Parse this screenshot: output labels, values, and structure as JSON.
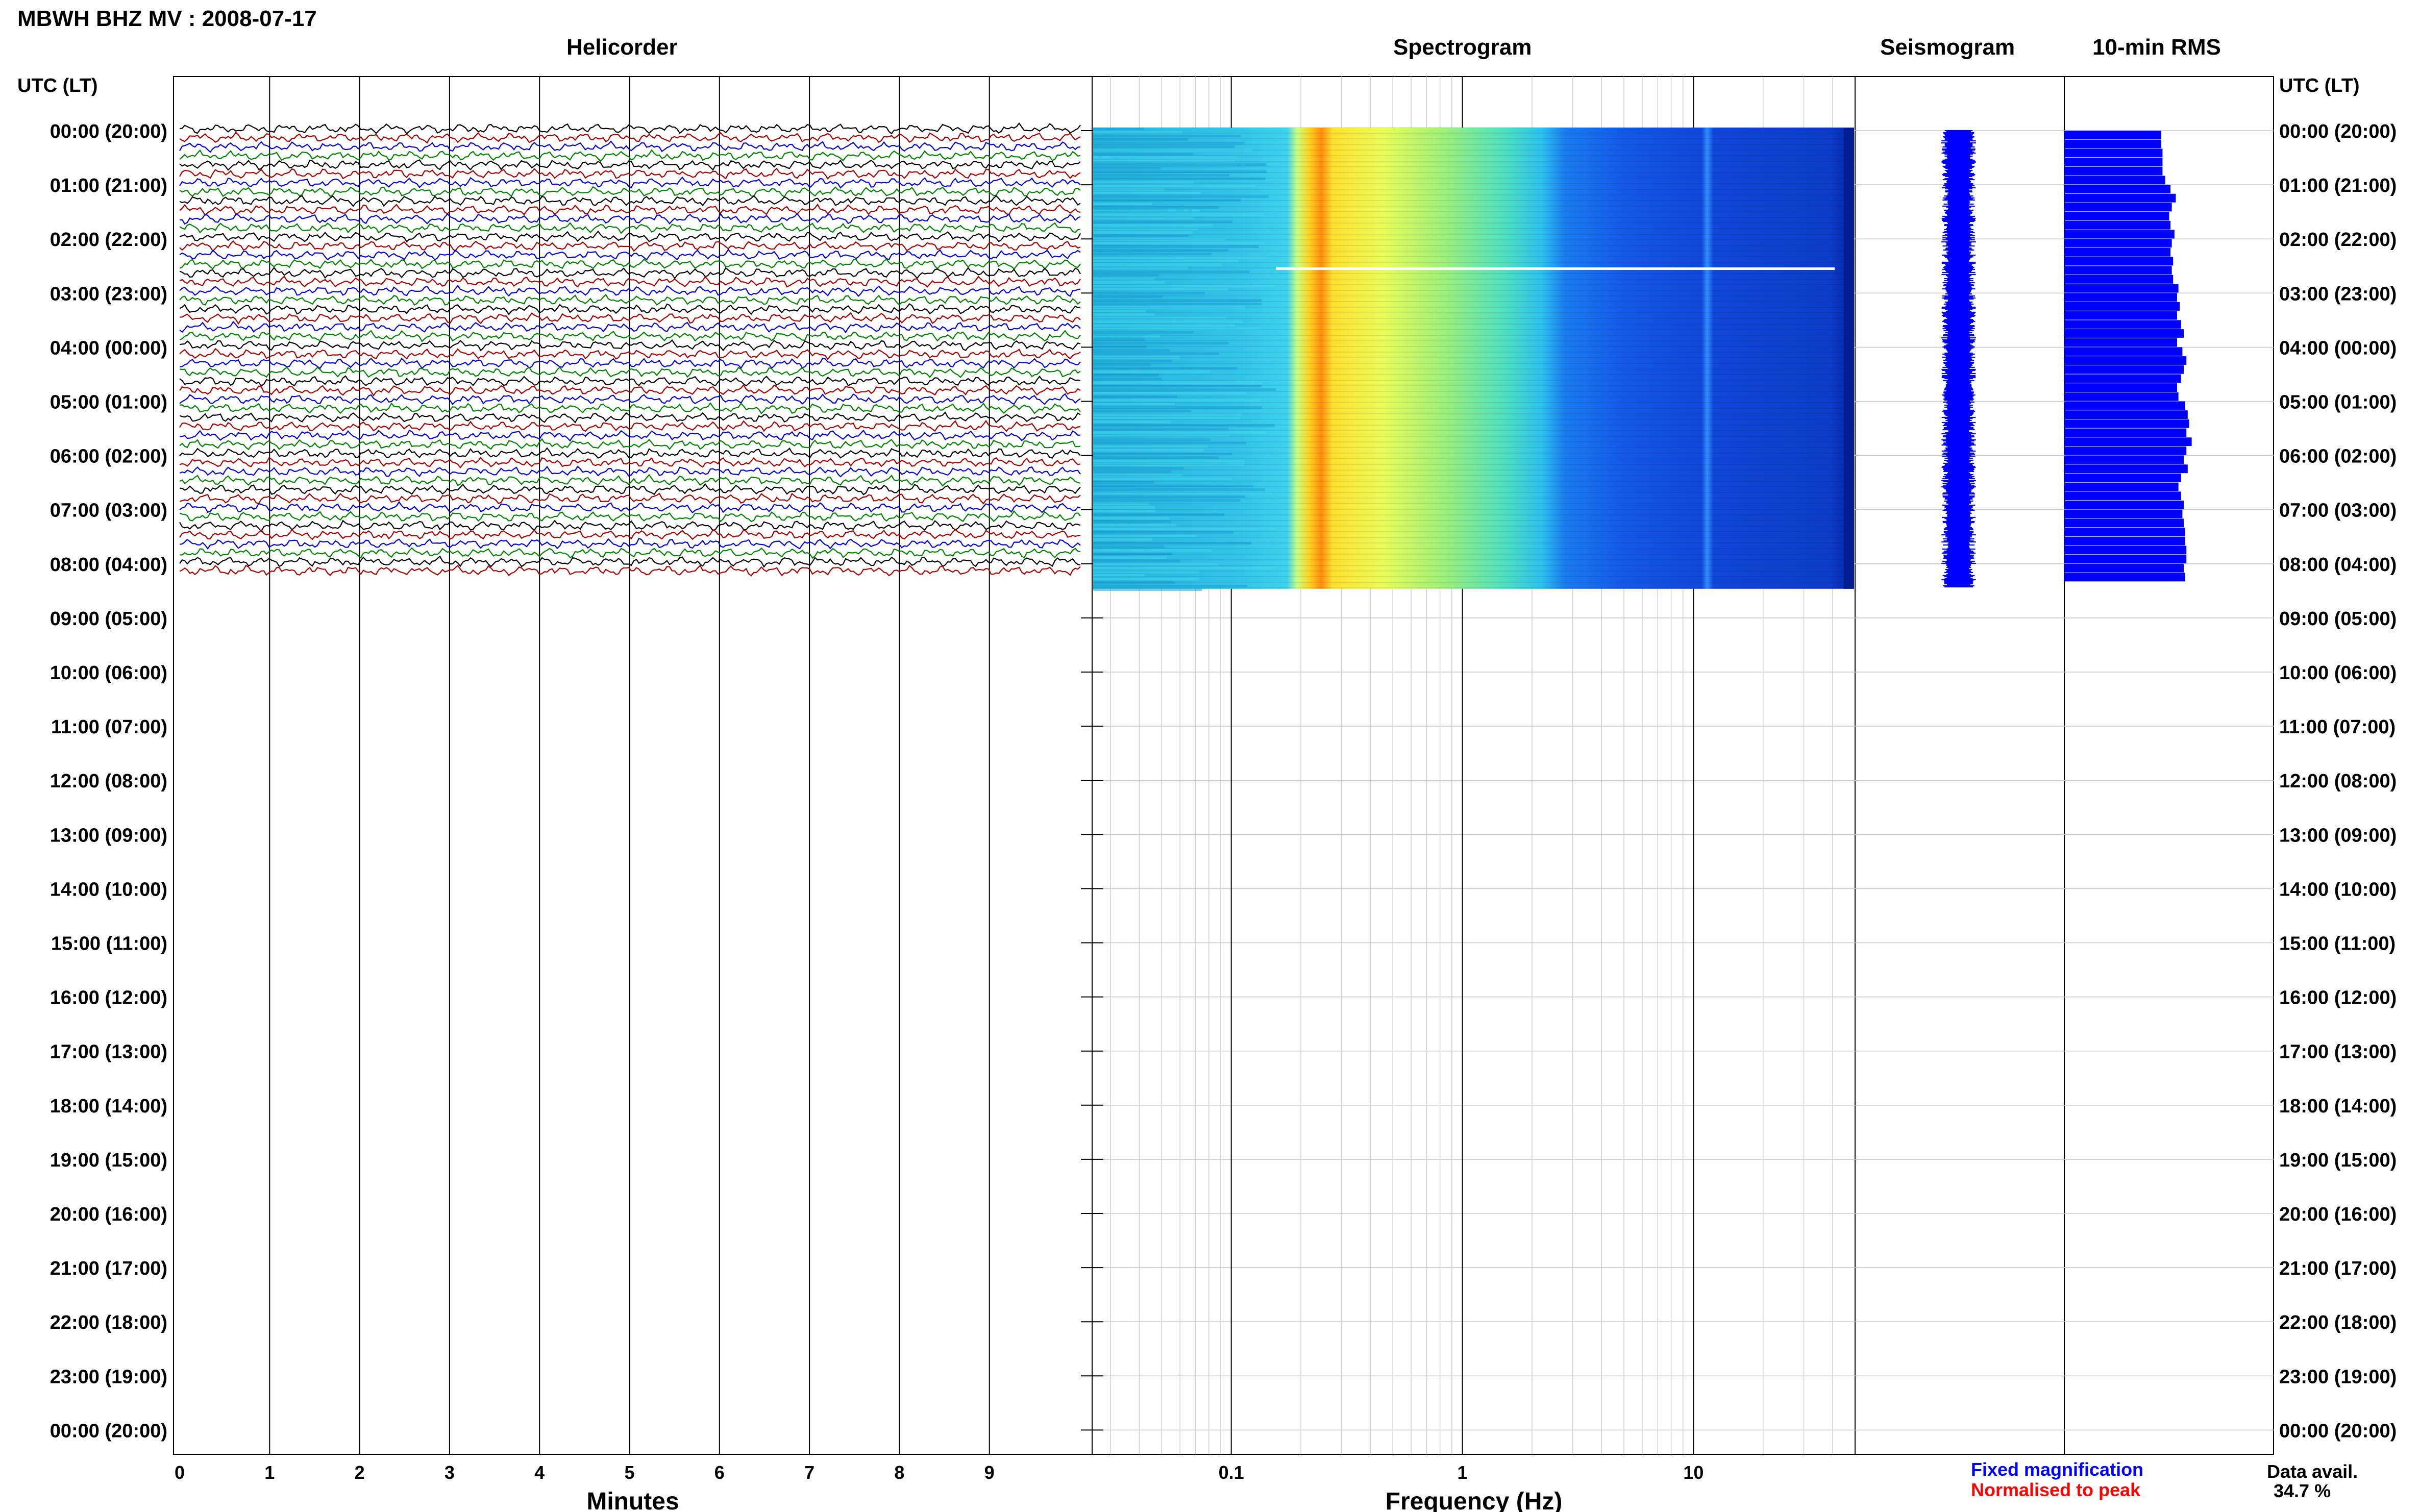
{
  "title": "MBWH BHZ MV : 2008-07-17",
  "panels": {
    "helicorder": "Helicorder",
    "spectrogram": "Spectrogram",
    "seismogram": "Seismogram",
    "rms": "10-min RMS"
  },
  "time_axis": {
    "label": "UTC (LT)",
    "ticks": [
      "00:00 (20:00)",
      "01:00 (21:00)",
      "02:00 (22:00)",
      "03:00 (23:00)",
      "04:00 (00:00)",
      "05:00 (01:00)",
      "06:00 (02:00)",
      "07:00 (03:00)",
      "08:00 (04:00)",
      "09:00 (05:00)",
      "10:00 (06:00)",
      "11:00 (07:00)",
      "12:00 (08:00)",
      "13:00 (09:00)",
      "14:00 (10:00)",
      "15:00 (11:00)",
      "16:00 (12:00)",
      "17:00 (13:00)",
      "18:00 (14:00)",
      "19:00 (15:00)",
      "20:00 (16:00)",
      "21:00 (17:00)",
      "22:00 (18:00)",
      "23:00 (19:00)",
      "00:00 (20:00)"
    ]
  },
  "x_axes": {
    "minutes_label": "Minutes",
    "minutes_ticks": [
      "0",
      "1",
      "2",
      "3",
      "4",
      "5",
      "6",
      "7",
      "8",
      "9"
    ],
    "frequency_label": "Frequency (Hz)",
    "frequency_ticks": [
      "0.1",
      "1",
      "10"
    ]
  },
  "legend": {
    "fixed": "Fixed magnification",
    "normalised": "Normalised to peak",
    "fixed_color": "#0000ff",
    "normalised_color": "#ff0000"
  },
  "data_availability": {
    "label": "Data avail.",
    "value": "34.7 %"
  },
  "chart_data": {
    "type": "heatmap",
    "station": "MBWH BHZ MV",
    "date": "2008-07-17",
    "hours_shown": 24,
    "data_end_hours": 8.33,
    "helicorder": {
      "xlabel": "Minutes",
      "xlim": [
        0,
        10
      ],
      "trace_colors": [
        "#000000",
        "#a00000",
        "#0000cc",
        "#008000"
      ]
    },
    "spectrogram": {
      "xlabel": "Frequency (Hz)",
      "xlim": [
        0.025,
        50
      ],
      "xscale": "log",
      "peak_frequency_hz": 0.25,
      "gap_hour": 2.55
    },
    "seismogram": {
      "color": "#0000ff"
    },
    "rms_10min": {
      "color": "#0000ff",
      "values": [
        0.73,
        0.73,
        0.74,
        0.74,
        0.74,
        0.76,
        0.8,
        0.84,
        0.81,
        0.79,
        0.8,
        0.83,
        0.81,
        0.8,
        0.82,
        0.81,
        0.82,
        0.86,
        0.85,
        0.87,
        0.85,
        0.88,
        0.9,
        0.85,
        0.89,
        0.92,
        0.9,
        0.88,
        0.85,
        0.86,
        0.91,
        0.93,
        0.94,
        0.92,
        0.96,
        0.92,
        0.9,
        0.93,
        0.88,
        0.86,
        0.88,
        0.9,
        0.89,
        0.9,
        0.91,
        0.91,
        0.92,
        0.92,
        0.9,
        0.91
      ]
    }
  }
}
